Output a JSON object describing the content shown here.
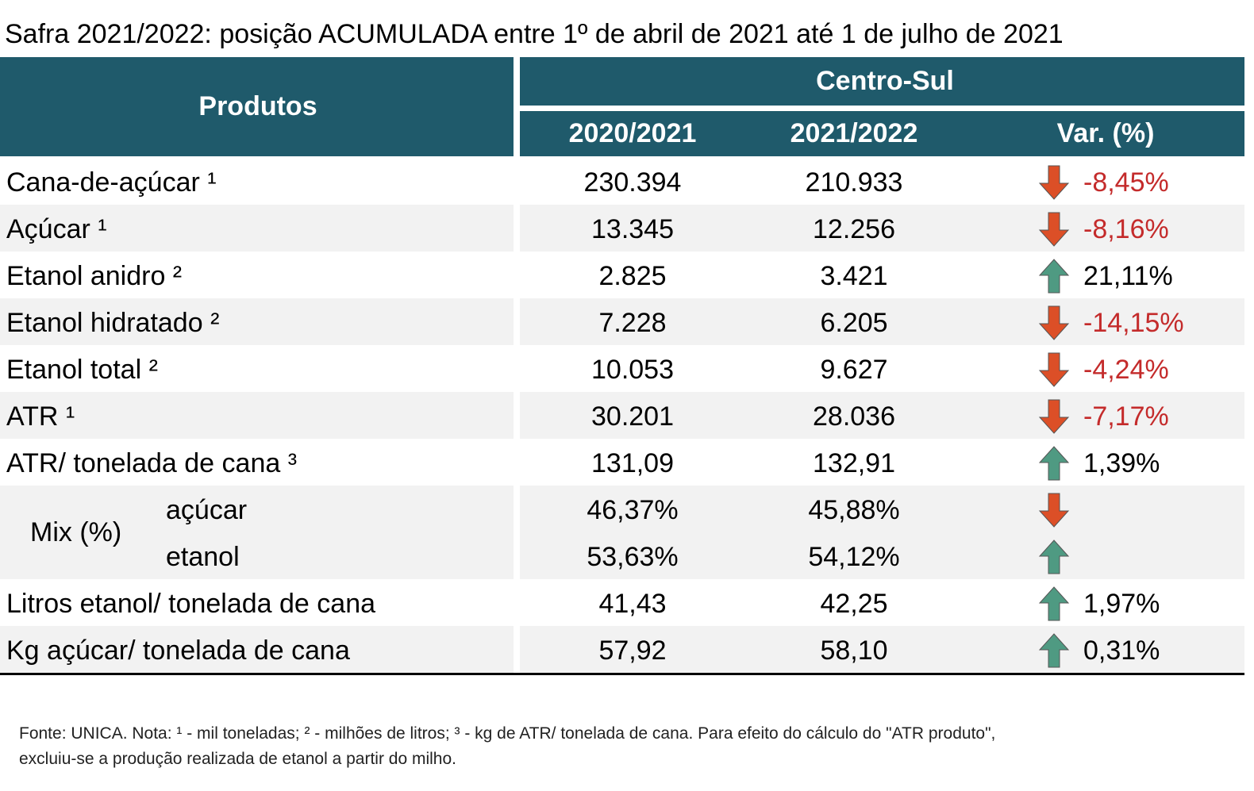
{
  "title": "Safra 2021/2022: posição ACUMULADA entre 1º de abril de 2021 até 1 de julho de 2021",
  "table": {
    "header": {
      "products": "Produtos",
      "region": "Centro-Sul",
      "columns": [
        "2020/2021",
        "2021/2022",
        "Var. (%)"
      ]
    },
    "rows": [
      {
        "product": "Cana-de-açúcar ¹",
        "values": [
          "230.394",
          "210.933"
        ],
        "variation": "-8,45%",
        "trend": "down"
      },
      {
        "product": "Açúcar ¹",
        "values": [
          "13.345",
          "12.256"
        ],
        "variation": "-8,16%",
        "trend": "down"
      },
      {
        "product": "Etanol anidro ²",
        "values": [
          "2.825",
          "3.421"
        ],
        "variation": "21,11%",
        "trend": "up"
      },
      {
        "product": "Etanol hidratado ²",
        "values": [
          "7.228",
          "6.205"
        ],
        "variation": "-14,15%",
        "trend": "down"
      },
      {
        "product": "Etanol total ²",
        "values": [
          "10.053",
          "9.627"
        ],
        "variation": "-4,24%",
        "trend": "down"
      },
      {
        "product": "ATR ¹",
        "values": [
          "30.201",
          "28.036"
        ],
        "variation": "-7,17%",
        "trend": "down"
      },
      {
        "product": "ATR/ tonelada de cana ³",
        "values": [
          "131,09",
          "132,91"
        ],
        "variation": "1,39%",
        "trend": "up"
      },
      {
        "product": "Mix (%)",
        "subrows": [
          {
            "product": "açúcar",
            "values": [
              "46,37%",
              "45,88%"
            ],
            "trend": "down"
          },
          {
            "product": "etanol",
            "values": [
              "53,63%",
              "54,12%"
            ],
            "trend": "up"
          }
        ]
      },
      {
        "product": "Litros etanol/ tonelada de cana",
        "values": [
          "41,43",
          "42,25"
        ],
        "variation": "1,97%",
        "trend": "up"
      },
      {
        "product": "Kg açúcar/ tonelada de cana",
        "values": [
          "57,92",
          "58,10"
        ],
        "variation": "0,31%",
        "trend": "up"
      }
    ],
    "style": {
      "header_fill": "#1f5a6b",
      "stripe_fill": "#f2f2f2",
      "arrow_colors": {
        "down": "#dc4f27",
        "up": "#4f9a82"
      },
      "variation_colors": {
        "down": "#c42b2b",
        "up": "#000000"
      }
    }
  },
  "footnote": [
    "Fonte: UNICA. Nota: ¹ - mil toneladas; ² - milhões de litros; ³ - kg de ATR/ tonelada de cana. Para efeito do cálculo do \"ATR produto\",",
    "excluiu-se a produção realizada de etanol a partir do milho."
  ]
}
